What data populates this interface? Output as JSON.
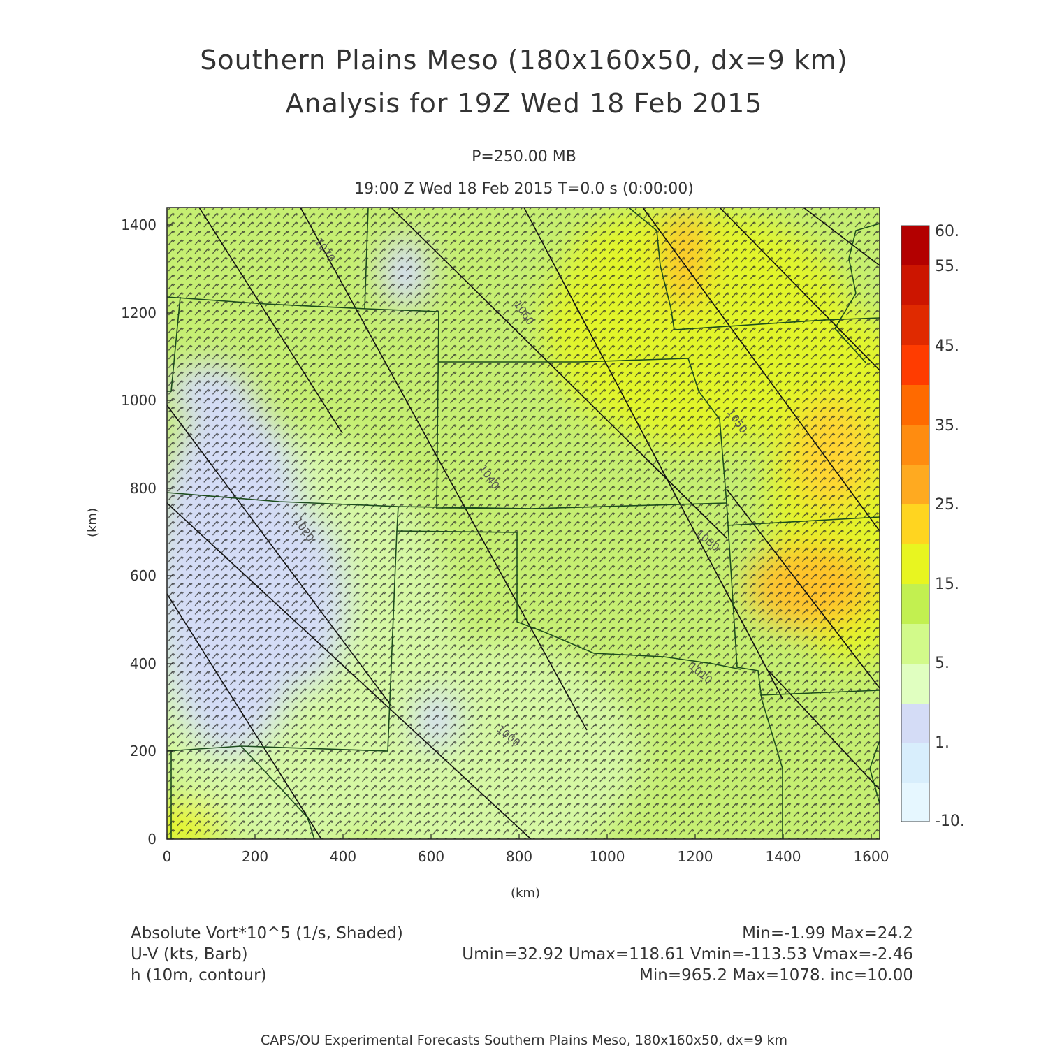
{
  "title": {
    "line1": "Southern Plains Meso (180x160x50, dx=9 km)",
    "line2": "Analysis for 19Z Wed 18 Feb 2015"
  },
  "subtitle": {
    "pressure": "P=250.00 MB",
    "time": "19:00 Z Wed 18 Feb 2015    T=0.0 s (0:00:00)"
  },
  "chart_data": {
    "type": "heatmap",
    "xlabel": "(km)",
    "ylabel": "(km)",
    "xlim": [
      0,
      1620
    ],
    "ylim": [
      0,
      1440
    ],
    "x_ticks": [
      "0",
      "200",
      "400",
      "600",
      "800",
      "1000",
      "1200",
      "1400",
      "1600"
    ],
    "y_ticks": [
      "0",
      "200",
      "400",
      "600",
      "800",
      "1000",
      "1200",
      "1400"
    ],
    "colorbar": {
      "labels": [
        "60.",
        "55.",
        "45.",
        "35.",
        "25.",
        "15.",
        "5.",
        "1.",
        "-10."
      ],
      "colors": [
        "#b30000",
        "#cc1500",
        "#e02a00",
        "#ff3c00",
        "#ff6a00",
        "#ff8c10",
        "#ffaa20",
        "#ffd520",
        "#e8f520",
        "#c2f050",
        "#d2fa8a",
        "#e0ffc0",
        "#d4dcf6",
        "#d8eefc",
        "#e6f7ff"
      ]
    },
    "contour_labels": [
      "1070",
      "1060",
      "1050",
      "1040",
      "1030",
      "1020",
      "1010",
      "1000"
    ],
    "fields": {
      "shaded": "Absolute Vort*10^5 (1/s, Shaded)",
      "barbs": "U-V (kts, Barb)",
      "contour": "h (10m, contour)"
    },
    "stats": {
      "shaded": "Min=-1.99 Max=24.2",
      "barbs": "Umin=32.92 Umax=118.61 Vmin=-113.53 Vmax=-2.46",
      "contour": "Min=965.2 Max=1078. inc=10.00"
    }
  },
  "footer": "CAPS/OU Experimental Forecasts  Southern Plains Meso, 180x160x50, dx=9 km"
}
